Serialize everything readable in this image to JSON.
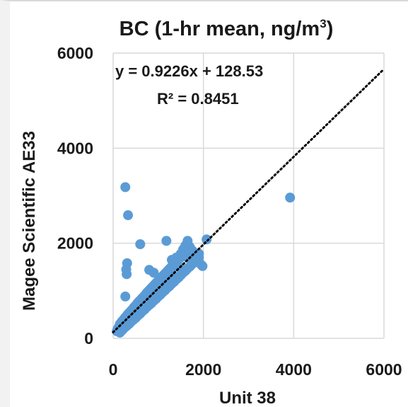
{
  "chart_data": {
    "type": "scatter",
    "title": "BC (1-hr mean, ng/m",
    "title_sup": "3",
    "title_end": ")",
    "xlabel": "Unit 38",
    "ylabel": "Magee Scientific AE33",
    "xlim": [
      0,
      6000
    ],
    "ylim": [
      0,
      6000
    ],
    "xticks": [
      0,
      2000,
      4000,
      6000
    ],
    "yticks": [
      0,
      2000,
      4000,
      6000
    ],
    "x_tick_labels": [
      "0",
      "2000",
      "4000",
      "6000"
    ],
    "y_tick_labels": [
      "0",
      "2000",
      "4000",
      "6000"
    ],
    "grid": true,
    "marker_color": "#5b9bd5",
    "trendline": {
      "slope": 0.9226,
      "intercept": 128.53,
      "style": "dotted",
      "color": "#000000"
    },
    "equation_text": "y = 0.9226x + 128.53",
    "r2_text": "R² = 0.8451",
    "points": [
      [
        80,
        150
      ],
      [
        100,
        200
      ],
      [
        120,
        230
      ],
      [
        140,
        260
      ],
      [
        150,
        300
      ],
      [
        170,
        320
      ],
      [
        190,
        350
      ],
      [
        200,
        280
      ],
      [
        220,
        380
      ],
      [
        240,
        400
      ],
      [
        260,
        430
      ],
      [
        280,
        450
      ],
      [
        300,
        470
      ],
      [
        320,
        500
      ],
      [
        340,
        520
      ],
      [
        360,
        540
      ],
      [
        380,
        560
      ],
      [
        400,
        580
      ],
      [
        420,
        600
      ],
      [
        440,
        620
      ],
      [
        460,
        650
      ],
      [
        480,
        670
      ],
      [
        500,
        690
      ],
      [
        520,
        710
      ],
      [
        540,
        740
      ],
      [
        560,
        760
      ],
      [
        580,
        780
      ],
      [
        600,
        800
      ],
      [
        620,
        820
      ],
      [
        640,
        840
      ],
      [
        660,
        860
      ],
      [
        680,
        880
      ],
      [
        700,
        900
      ],
      [
        720,
        920
      ],
      [
        740,
        950
      ],
      [
        760,
        970
      ],
      [
        780,
        990
      ],
      [
        800,
        1010
      ],
      [
        820,
        1030
      ],
      [
        840,
        1050
      ],
      [
        860,
        1070
      ],
      [
        880,
        1090
      ],
      [
        900,
        1110
      ],
      [
        920,
        1130
      ],
      [
        940,
        1150
      ],
      [
        960,
        1170
      ],
      [
        980,
        1190
      ],
      [
        1000,
        1210
      ],
      [
        1020,
        1230
      ],
      [
        1040,
        1250
      ],
      [
        1060,
        1270
      ],
      [
        1080,
        1290
      ],
      [
        1100,
        1310
      ],
      [
        1120,
        1330
      ],
      [
        1140,
        1350
      ],
      [
        1160,
        1370
      ],
      [
        1180,
        1390
      ],
      [
        1200,
        1410
      ],
      [
        1220,
        1430
      ],
      [
        1240,
        1450
      ],
      [
        1260,
        1470
      ],
      [
        1280,
        1490
      ],
      [
        1300,
        1510
      ],
      [
        1320,
        1530
      ],
      [
        1340,
        1550
      ],
      [
        1360,
        1570
      ],
      [
        1380,
        1590
      ],
      [
        1400,
        1610
      ],
      [
        1420,
        1630
      ],
      [
        1440,
        1650
      ],
      [
        1460,
        1670
      ],
      [
        1480,
        1690
      ],
      [
        150,
        120
      ],
      [
        200,
        170
      ],
      [
        250,
        220
      ],
      [
        300,
        260
      ],
      [
        350,
        300
      ],
      [
        400,
        350
      ],
      [
        450,
        390
      ],
      [
        500,
        430
      ],
      [
        550,
        480
      ],
      [
        600,
        520
      ],
      [
        650,
        570
      ],
      [
        700,
        610
      ],
      [
        750,
        660
      ],
      [
        800,
        700
      ],
      [
        850,
        740
      ],
      [
        900,
        790
      ],
      [
        950,
        830
      ],
      [
        1000,
        880
      ],
      [
        1050,
        920
      ],
      [
        1100,
        970
      ],
      [
        1150,
        1010
      ],
      [
        1200,
        1060
      ],
      [
        1250,
        1100
      ],
      [
        1300,
        1150
      ],
      [
        1350,
        1190
      ],
      [
        1400,
        1240
      ],
      [
        1450,
        1280
      ],
      [
        1500,
        1330
      ],
      [
        1550,
        1380
      ],
      [
        1600,
        1420
      ],
      [
        1650,
        1470
      ],
      [
        1700,
        1510
      ],
      [
        1750,
        1560
      ],
      [
        1800,
        1600
      ],
      [
        1850,
        1650
      ],
      [
        1900,
        1700
      ],
      [
        200,
        300
      ],
      [
        250,
        380
      ],
      [
        300,
        420
      ],
      [
        350,
        480
      ],
      [
        400,
        520
      ],
      [
        450,
        600
      ],
      [
        500,
        640
      ],
      [
        550,
        700
      ],
      [
        600,
        760
      ],
      [
        650,
        800
      ],
      [
        700,
        860
      ],
      [
        750,
        920
      ],
      [
        800,
        960
      ],
      [
        850,
        1020
      ],
      [
        900,
        1080
      ],
      [
        950,
        1120
      ],
      [
        1000,
        1180
      ],
      [
        1050,
        1240
      ],
      [
        1100,
        1280
      ],
      [
        1150,
        1340
      ],
      [
        1200,
        1400
      ],
      [
        1250,
        1440
      ],
      [
        1300,
        1500
      ],
      [
        1350,
        1560
      ],
      [
        1400,
        1600
      ],
      [
        1450,
        1660
      ],
      [
        1500,
        1720
      ],
      [
        1550,
        1760
      ],
      [
        1600,
        1800
      ],
      [
        1650,
        1860
      ],
      [
        300,
        350
      ],
      [
        450,
        470
      ],
      [
        650,
        700
      ],
      [
        850,
        900
      ],
      [
        1050,
        1100
      ],
      [
        1250,
        1300
      ],
      [
        1450,
        1500
      ],
      [
        1650,
        1700
      ],
      [
        1100,
        1050
      ],
      [
        1200,
        1150
      ],
      [
        1300,
        1250
      ],
      [
        1150,
        1200
      ],
      [
        1250,
        1200
      ],
      [
        1350,
        1300
      ],
      [
        1300,
        1650
      ],
      [
        1400,
        1700
      ],
      [
        1500,
        1780
      ],
      [
        1550,
        1870
      ],
      [
        1600,
        1950
      ],
      [
        1650,
        2000
      ],
      [
        1700,
        1920
      ],
      [
        1750,
        1850
      ],
      [
        1800,
        1800
      ],
      [
        1900,
        1780
      ],
      [
        1950,
        1550
      ],
      [
        1980,
        1520
      ],
      [
        2070,
        2080
      ],
      [
        1650,
        2050
      ],
      [
        1180,
        2050
      ],
      [
        600,
        1980
      ],
      [
        800,
        1440
      ],
      [
        900,
        1380
      ],
      [
        310,
        1580
      ],
      [
        290,
        1450
      ],
      [
        300,
        1350
      ],
      [
        270,
        880
      ],
      [
        270,
        3180
      ],
      [
        330,
        2590
      ],
      [
        3920,
        2960
      ]
    ]
  }
}
